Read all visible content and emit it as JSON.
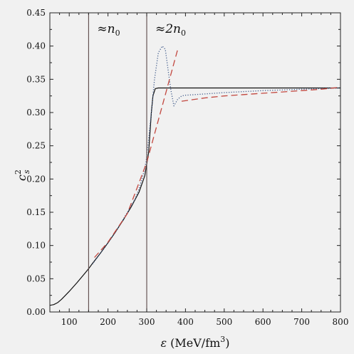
{
  "chart_data": {
    "type": "line",
    "title": "",
    "xlabel": "ε (MeV/fm³)",
    "xlabel_parts": {
      "var": "ε",
      "pre": " (MeV/fm",
      "sup": "3",
      "post": ")"
    },
    "ylabel": "c_s^2",
    "ylabel_parts": {
      "base": "c",
      "sup": "2",
      "sub": "s"
    },
    "xlim": [
      50,
      800
    ],
    "ylim": [
      0,
      0.45
    ],
    "xticks": [
      100,
      200,
      300,
      400,
      500,
      600,
      700,
      800
    ],
    "xtick_labels": [
      "100",
      "200",
      "300",
      "400",
      "500",
      "600",
      "700",
      "800"
    ],
    "yticks": [
      0,
      0.05,
      0.1,
      0.15,
      0.2,
      0.25,
      0.3,
      0.35,
      0.4,
      0.45
    ],
    "ytick_labels": [
      "0.00",
      "0.05",
      "0.10",
      "0.15",
      "0.20",
      "0.25",
      "0.30",
      "0.35",
      "0.40",
      "0.45"
    ],
    "grid": false,
    "colors": {
      "solid": "#111111",
      "dotted": "#3f5a8a",
      "dashed": "#c2473f",
      "vline": "#5a4848"
    },
    "vlines": [
      {
        "x": 150,
        "label": "≈n",
        "sub": "0"
      },
      {
        "x": 300,
        "label": "≈2n",
        "sub": "0"
      }
    ],
    "series": [
      {
        "style": "solid",
        "x": [
          50,
          60,
          70,
          80,
          90,
          100,
          120,
          140,
          150,
          160,
          180,
          200,
          220,
          240,
          260,
          280,
          295,
          305,
          312,
          316,
          322,
          330,
          360,
          400,
          500,
          600,
          700,
          800
        ],
        "y": [
          0.01,
          0.011,
          0.014,
          0.019,
          0.025,
          0.031,
          0.044,
          0.058,
          0.065,
          0.073,
          0.088,
          0.104,
          0.121,
          0.139,
          0.158,
          0.18,
          0.205,
          0.24,
          0.3,
          0.325,
          0.336,
          0.337,
          0.337,
          0.337,
          0.337,
          0.337,
          0.337,
          0.337
        ]
      },
      {
        "style": "dotted",
        "x": [
          160,
          180,
          200,
          220,
          240,
          260,
          270,
          280,
          290,
          298,
          305,
          312,
          320,
          330,
          340,
          348,
          355,
          362,
          370,
          380,
          390,
          400,
          450,
          500,
          600,
          700,
          800
        ],
        "y": [
          0.072,
          0.088,
          0.104,
          0.121,
          0.14,
          0.16,
          0.17,
          0.185,
          0.205,
          0.225,
          0.26,
          0.3,
          0.35,
          0.39,
          0.4,
          0.395,
          0.365,
          0.335,
          0.31,
          0.32,
          0.325,
          0.326,
          0.328,
          0.33,
          0.333,
          0.335,
          0.337
        ]
      },
      {
        "style": "dashed",
        "segments": [
          {
            "x": [
              165,
              200,
              250,
              300,
              340,
              380
            ],
            "y": [
              0.082,
              0.105,
              0.148,
              0.225,
              0.31,
              0.395
            ]
          },
          {
            "x": [
              390,
              450,
              500,
              550,
              600,
              650,
              700,
              750,
              800
            ],
            "y": [
              0.317,
              0.322,
              0.325,
              0.327,
              0.329,
              0.331,
              0.333,
              0.335,
              0.338
            ]
          }
        ]
      }
    ]
  }
}
